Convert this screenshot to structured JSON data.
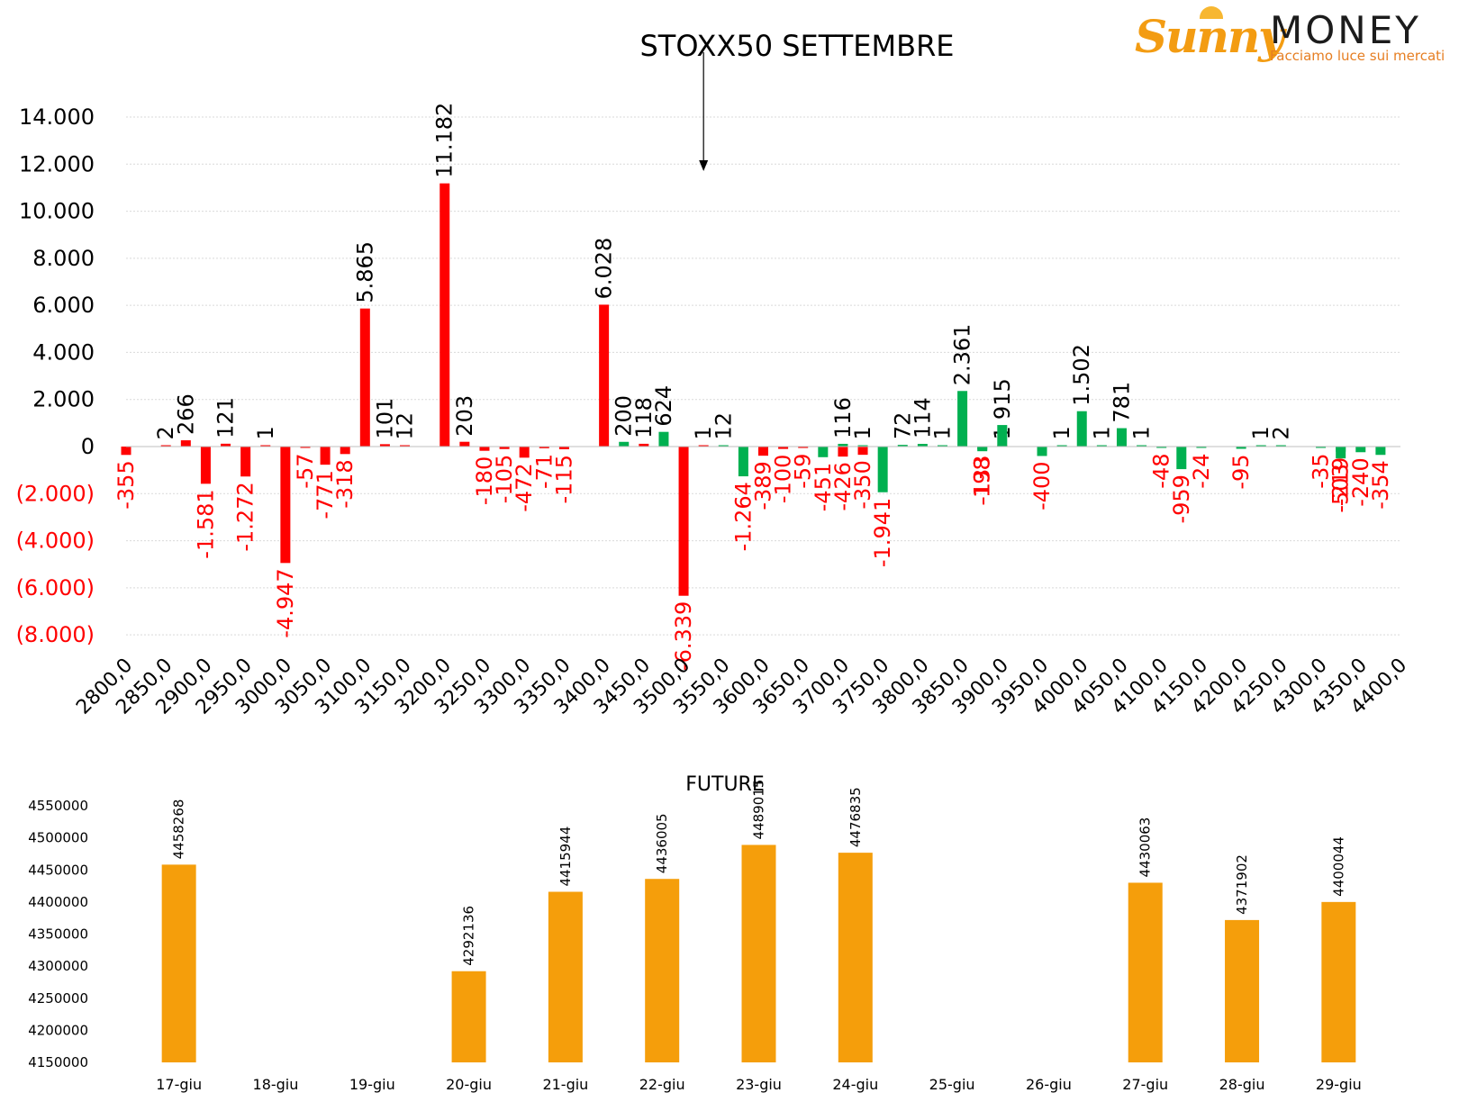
{
  "logo": {
    "name_part1": "Sunny",
    "name_part2": "MONEY",
    "tagline": "Facciamo luce sui mercati"
  },
  "chart_data": [
    {
      "type": "bar",
      "title": "STOXX50 SETTEMBRE",
      "ylim": [
        -8000,
        14000
      ],
      "y_ticks": [
        {
          "value": 14000,
          "label": "14.000"
        },
        {
          "value": 12000,
          "label": "12.000"
        },
        {
          "value": 10000,
          "label": "10.000"
        },
        {
          "value": 8000,
          "label": "8.000"
        },
        {
          "value": 6000,
          "label": "6.000"
        },
        {
          "value": 4000,
          "label": "4.000"
        },
        {
          "value": 2000,
          "label": "2.000"
        },
        {
          "value": 0,
          "label": "0"
        },
        {
          "value": -2000,
          "label": "(2.000)"
        },
        {
          "value": -4000,
          "label": "(4.000)"
        },
        {
          "value": -6000,
          "label": "(6.000)"
        },
        {
          "value": -8000,
          "label": "(8.000)"
        }
      ],
      "x_ticks": [
        "2800,0",
        "2850,0",
        "2900,0",
        "2950,0",
        "3000,0",
        "3050,0",
        "3100,0",
        "3150,0",
        "3200,0",
        "3250,0",
        "3300,0",
        "3350,0",
        "3400,0",
        "3450,0",
        "3500,0",
        "3550,0",
        "3600,0",
        "3650,0",
        "3700,0",
        "3750,0",
        "3800,0",
        "3850,0",
        "3900,0",
        "3950,0",
        "4000,0",
        "4050,0",
        "4100,0",
        "4150,0",
        "4200,0",
        "4250,0",
        "4300,0",
        "4350,0",
        "4400,0"
      ],
      "x_range": [
        2800,
        4400
      ],
      "arrow_at": 3525,
      "colors": {
        "call": "#ff0000",
        "put": "#00b050",
        "axis": "#000000",
        "grid": "#d9d9d9"
      },
      "series": [
        {
          "color": "#ff0000",
          "points": [
            {
              "x": 2800,
              "y": -355,
              "label": "-355"
            },
            {
              "x": 2850,
              "y": 2,
              "label": "2"
            },
            {
              "x": 2875,
              "y": 266,
              "label": "266"
            },
            {
              "x": 2900,
              "y": -1581,
              "label": "-1.581"
            },
            {
              "x": 2925,
              "y": 121,
              "label": "121"
            },
            {
              "x": 2950,
              "y": -1272,
              "label": "-1.272"
            },
            {
              "x": 2975,
              "y": 1,
              "label": "1"
            },
            {
              "x": 3000,
              "y": -4947,
              "label": "-4.947"
            },
            {
              "x": 3025,
              "y": -57,
              "label": "-57"
            },
            {
              "x": 3050,
              "y": -771,
              "label": "-771"
            },
            {
              "x": 3075,
              "y": -318,
              "label": "-318"
            },
            {
              "x": 3100,
              "y": 5865,
              "label": "5.865"
            },
            {
              "x": 3125,
              "y": 101,
              "label": "101"
            },
            {
              "x": 3150,
              "y": 12,
              "label": "12"
            },
            {
              "x": 3200,
              "y": 11182,
              "label": "11.182"
            },
            {
              "x": 3225,
              "y": 203,
              "label": "203"
            },
            {
              "x": 3250,
              "y": -180,
              "label": "-180"
            },
            {
              "x": 3275,
              "y": -105,
              "label": "-105"
            },
            {
              "x": 3300,
              "y": -472,
              "label": "-472"
            },
            {
              "x": 3325,
              "y": -71,
              "label": "-71"
            },
            {
              "x": 3350,
              "y": -115,
              "label": "-115"
            },
            {
              "x": 3400,
              "y": 6028,
              "label": "6.028"
            },
            {
              "x": 3450,
              "y": 118,
              "label": "118"
            },
            {
              "x": 3500,
              "y": -6339,
              "label": "-6.339"
            },
            {
              "x": 3525,
              "y": 1,
              "label": "1"
            },
            {
              "x": 3600,
              "y": -389,
              "label": "-389"
            },
            {
              "x": 3625,
              "y": -100,
              "label": "-100"
            },
            {
              "x": 3650,
              "y": -59,
              "label": "-59"
            },
            {
              "x": 3700,
              "y": -426,
              "label": "-426"
            },
            {
              "x": 3725,
              "y": -350,
              "label": "-350"
            },
            {
              "x": 3900,
              "y": 1,
              "label": "1"
            }
          ]
        },
        {
          "color": "#00b050",
          "points": [
            {
              "x": 3425,
              "y": 200,
              "label": "200"
            },
            {
              "x": 3475,
              "y": 624,
              "label": "624"
            },
            {
              "x": 3550,
              "y": 12,
              "label": "12"
            },
            {
              "x": 3575,
              "y": -1264,
              "label": "-1.264"
            },
            {
              "x": 3675,
              "y": -451,
              "label": "-451"
            },
            {
              "x": 3700,
              "y": 116,
              "label": "116"
            },
            {
              "x": 3725,
              "y": 1,
              "label": "1"
            },
            {
              "x": 3750,
              "y": -1941,
              "label": "-1.941"
            },
            {
              "x": 3775,
              "y": 72,
              "label": "72"
            },
            {
              "x": 3800,
              "y": 114,
              "label": "114"
            },
            {
              "x": 3825,
              "y": 1,
              "label": "1"
            },
            {
              "x": 3850,
              "y": 2361,
              "label": "2.361"
            },
            {
              "x": 3875,
              "y": -133,
              "label": "-133"
            },
            {
              "x": 3875,
              "y": -198,
              "label": "-198"
            },
            {
              "x": 3900,
              "y": 915,
              "label": "915"
            },
            {
              "x": 3950,
              "y": -400,
              "label": "-400"
            },
            {
              "x": 3975,
              "y": 1,
              "label": "1"
            },
            {
              "x": 4000,
              "y": 1502,
              "label": "1.502"
            },
            {
              "x": 4025,
              "y": 1,
              "label": "1"
            },
            {
              "x": 4050,
              "y": 781,
              "label": "781"
            },
            {
              "x": 4075,
              "y": 1,
              "label": "1"
            },
            {
              "x": 4100,
              "y": -48,
              "label": "-48"
            },
            {
              "x": 4125,
              "y": -959,
              "label": "-959"
            },
            {
              "x": 4150,
              "y": -24,
              "label": "-24"
            },
            {
              "x": 4200,
              "y": -95,
              "label": "-95"
            },
            {
              "x": 4225,
              "y": 1,
              "label": "1"
            },
            {
              "x": 4250,
              "y": 2,
              "label": "2"
            },
            {
              "x": 4300,
              "y": -35,
              "label": "-35"
            },
            {
              "x": 4325,
              "y": -503,
              "label": "-503"
            },
            {
              "x": 4325,
              "y": -219,
              "label": "-219"
            },
            {
              "x": 4350,
              "y": -240,
              "label": "-240"
            },
            {
              "x": 4375,
              "y": -354,
              "label": "-354"
            }
          ]
        }
      ]
    },
    {
      "type": "bar",
      "title": "FUTURE",
      "categories": [
        "17-giu",
        "18-giu",
        "19-giu",
        "20-giu",
        "21-giu",
        "22-giu",
        "23-giu",
        "24-giu",
        "25-giu",
        "26-giu",
        "27-giu",
        "28-giu",
        "29-giu"
      ],
      "values": [
        4458268,
        null,
        null,
        4292136,
        4415944,
        4436005,
        4489015,
        4476835,
        null,
        null,
        4430063,
        4371902,
        4400044
      ],
      "value_labels": [
        "4458268",
        "",
        "",
        "4292136",
        "4415944",
        "4436005",
        "4489015",
        "4476835",
        "",
        "",
        "4430063",
        "4371902",
        "4400044"
      ],
      "ylim": [
        4150000,
        4550000
      ],
      "y_ticks": [
        "4550000",
        "4500000",
        "4450000",
        "4400000",
        "4350000",
        "4300000",
        "4250000",
        "4200000",
        "4150000"
      ],
      "color": "#f59e0b"
    }
  ]
}
